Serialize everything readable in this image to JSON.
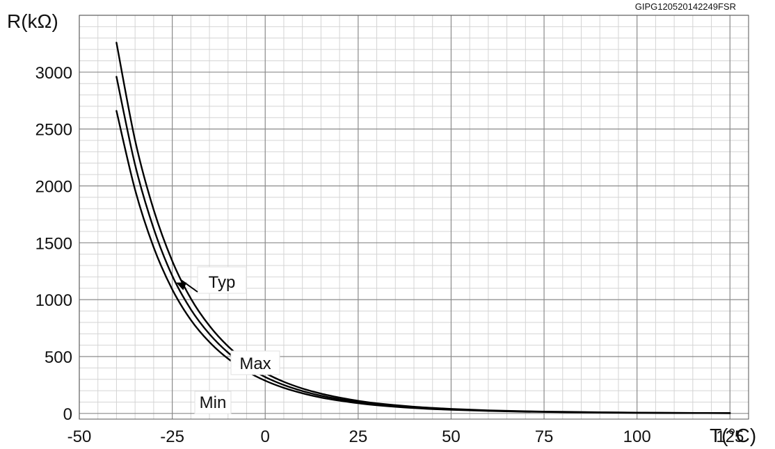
{
  "chart_data": {
    "type": "line",
    "figure_code": "GIPG120520142249FSR",
    "xlabel": "T(°C)",
    "ylabel": "R(kΩ)",
    "xlim": [
      -50,
      130
    ],
    "ylim": [
      -50,
      3500
    ],
    "x_ticks": [
      -50,
      -25,
      0,
      25,
      50,
      75,
      100,
      125
    ],
    "y_ticks": [
      0,
      500,
      1000,
      1500,
      2000,
      2500,
      3000
    ],
    "x_tick_labels": [
      "-50",
      "-25",
      "0",
      "25",
      "50",
      "75",
      "100",
      "125"
    ],
    "y_tick_labels": [
      "0",
      "500",
      "1000",
      "1500",
      "2000",
      "2500",
      "3000"
    ],
    "grid": true,
    "x": [
      -40,
      -35,
      -30,
      -25,
      -20,
      -15,
      -10,
      -5,
      0,
      5,
      10,
      15,
      20,
      25,
      30,
      40,
      50,
      60,
      70,
      80,
      90,
      100,
      110,
      125
    ],
    "series": [
      {
        "name": "Max",
        "values": [
          3260,
          2400,
          1790,
          1340,
          1010,
          770,
          590,
          455,
          355,
          278,
          219,
          174,
          139,
          111,
          89,
          59,
          40,
          27,
          19,
          14,
          10,
          7,
          5,
          3
        ]
      },
      {
        "name": "Typ",
        "values": [
          2960,
          2185,
          1625,
          1210,
          915,
          698,
          535,
          412,
          320,
          250,
          197,
          156,
          125,
          100,
          80,
          53,
          36,
          24,
          17,
          12,
          9,
          6,
          4,
          3
        ]
      },
      {
        "name": "Min",
        "values": [
          2660,
          1965,
          1460,
          1090,
          822,
          627,
          481,
          371,
          288,
          225,
          177,
          140,
          112,
          90,
          72,
          48,
          32,
          22,
          15,
          11,
          8,
          5,
          4,
          2
        ]
      }
    ],
    "annotations": [
      {
        "label": "Typ",
        "series": "Typ",
        "at_x": -24
      },
      {
        "label": "Max",
        "series": "Max",
        "at_x": -6
      },
      {
        "label": "Min",
        "series": "Min",
        "at_x": -9
      }
    ]
  }
}
